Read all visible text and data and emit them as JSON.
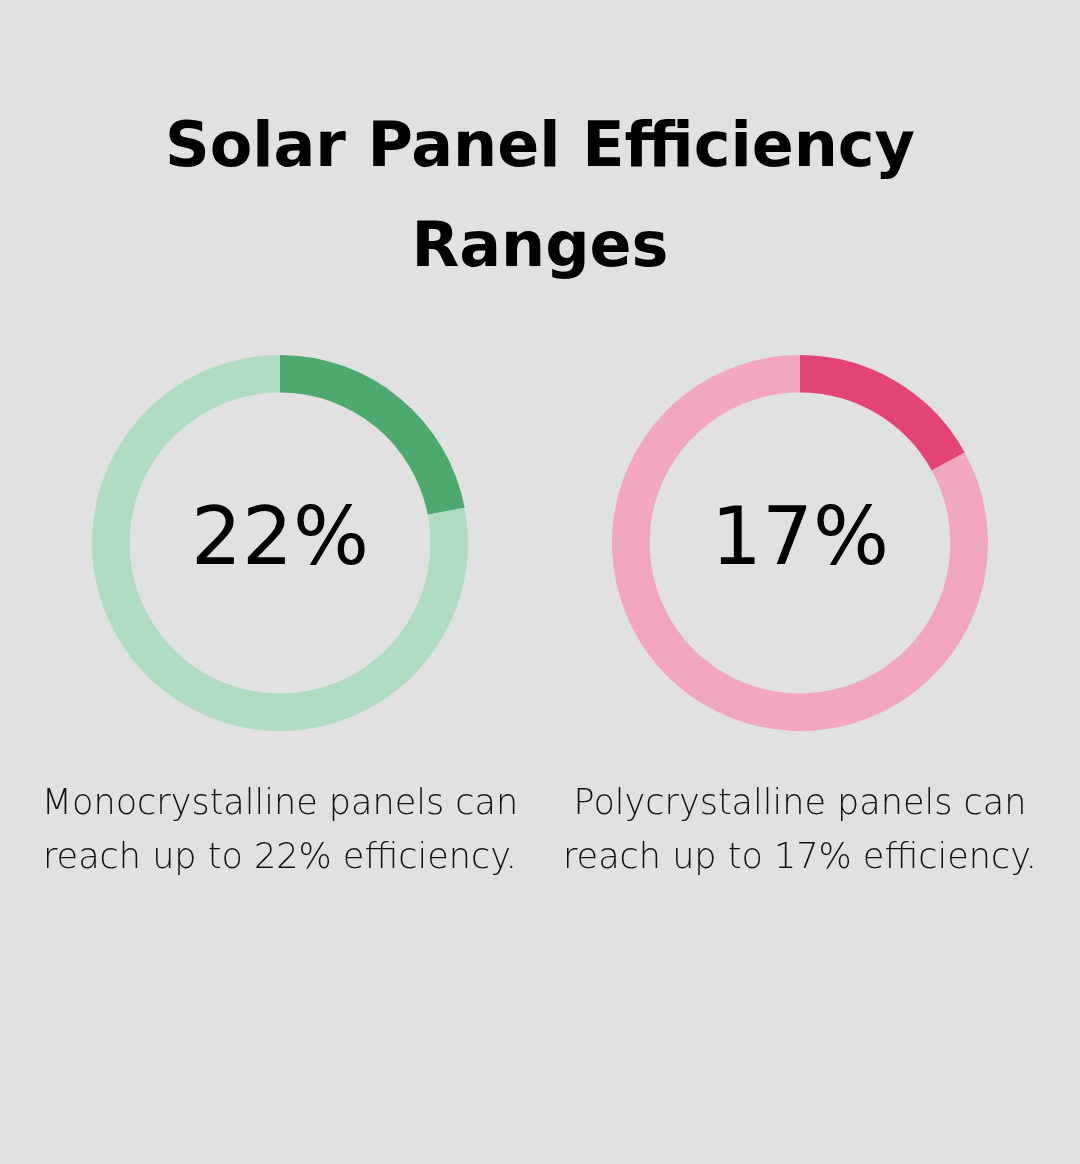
{
  "chart_data": [
    {
      "type": "donut",
      "title": "Solar Panel Efficiency Ranges",
      "categories": [
        null,
        null
      ],
      "values": [
        22,
        78
      ],
      "colors": [
        "#4ea96e",
        "#b0dcc2"
      ],
      "value_labels": [
        "22%",
        null
      ],
      "annotations": [
        "Monocrystalline panels can reach up to 22% efficiency."
      ]
    },
    {
      "type": "donut",
      "categories": [
        null,
        null
      ],
      "values": [
        17,
        83
      ],
      "colors": [
        "#e34375",
        "#f1a8bf"
      ],
      "value_labels": [
        "17%",
        null
      ],
      "annotations": [
        "Polycrystalline panels can reach up to 17% efficiency."
      ]
    }
  ]
}
